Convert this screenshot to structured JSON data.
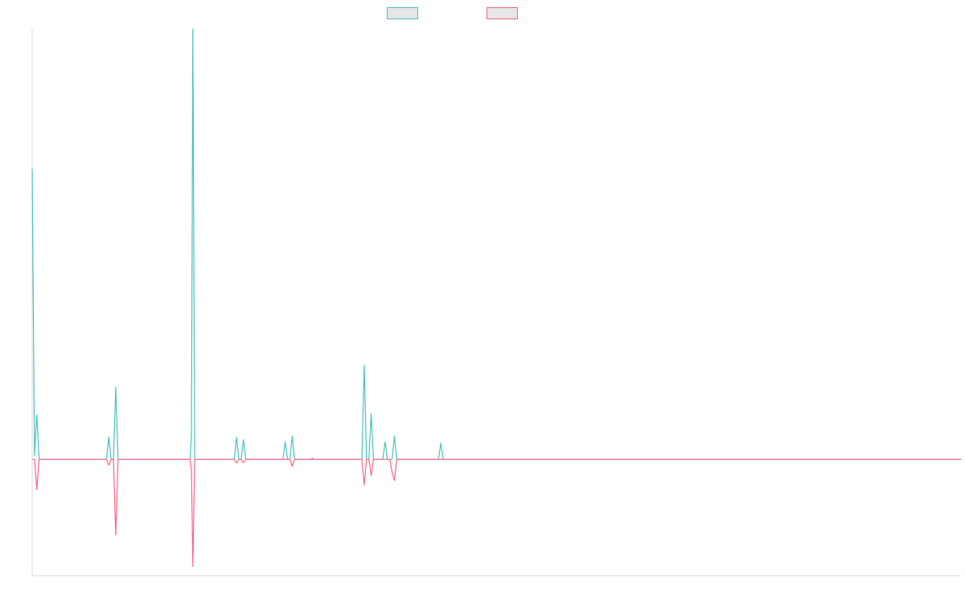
{
  "colors": {
    "series_1": "#4bc0c0",
    "series_2": "#ff6384",
    "axis": "#d9d9d9"
  },
  "legend": {
    "items": [
      {
        "label": ""
      },
      {
        "label": ""
      }
    ]
  },
  "chart_data": {
    "type": "line",
    "title": "",
    "xlabel": "",
    "ylabel": "",
    "grid": false,
    "legend_position": "top",
    "x_range": [
      0,
      200
    ],
    "ylim": [
      -100,
      370
    ],
    "series": [
      {
        "color": "#4bc0c0",
        "points": [
          [
            0,
            250
          ],
          [
            0.5,
            3
          ],
          [
            1,
            38
          ],
          [
            1.5,
            0
          ],
          [
            16,
            0
          ],
          [
            16.5,
            19
          ],
          [
            17,
            0
          ],
          [
            17.5,
            0
          ],
          [
            18,
            62
          ],
          [
            18.5,
            0
          ],
          [
            34,
            0
          ],
          [
            34.3,
            20
          ],
          [
            34.6,
            370
          ],
          [
            35,
            0
          ],
          [
            43.5,
            0
          ],
          [
            44,
            19
          ],
          [
            44.5,
            0
          ],
          [
            45,
            0
          ],
          [
            45.5,
            17
          ],
          [
            46,
            0
          ],
          [
            54,
            0
          ],
          [
            54.5,
            15
          ],
          [
            55,
            0
          ],
          [
            55.5,
            0
          ],
          [
            56,
            20
          ],
          [
            56.5,
            0
          ],
          [
            60,
            0
          ],
          [
            60.3,
            1
          ],
          [
            60.6,
            0
          ],
          [
            71,
            0
          ],
          [
            71.5,
            81
          ],
          [
            72,
            0
          ],
          [
            72.5,
            0
          ],
          [
            73,
            39
          ],
          [
            73.5,
            0
          ],
          [
            75.5,
            0
          ],
          [
            76,
            15
          ],
          [
            76.5,
            0
          ],
          [
            77,
            0
          ],
          [
            77.5,
            0
          ],
          [
            78,
            20
          ],
          [
            78.5,
            0
          ],
          [
            87.5,
            0
          ],
          [
            88,
            14
          ],
          [
            88.5,
            0
          ],
          [
            200,
            0
          ]
        ]
      },
      {
        "color": "#ff6384",
        "points": [
          [
            0,
            0
          ],
          [
            0.5,
            0
          ],
          [
            1,
            -26
          ],
          [
            1.5,
            0
          ],
          [
            16,
            0
          ],
          [
            16.5,
            -5
          ],
          [
            17,
            0
          ],
          [
            17.5,
            0
          ],
          [
            18,
            -65
          ],
          [
            18.5,
            0
          ],
          [
            34,
            0
          ],
          [
            34.3,
            -10
          ],
          [
            34.6,
            -92
          ],
          [
            35,
            0
          ],
          [
            43.5,
            0
          ],
          [
            44,
            -3
          ],
          [
            44.5,
            0
          ],
          [
            45,
            0
          ],
          [
            45.5,
            -3
          ],
          [
            46,
            0
          ],
          [
            54,
            0
          ],
          [
            54.5,
            0
          ],
          [
            55,
            0
          ],
          [
            55.5,
            0
          ],
          [
            56,
            -6
          ],
          [
            56.5,
            0
          ],
          [
            71,
            0
          ],
          [
            71.5,
            -22
          ],
          [
            72,
            0
          ],
          [
            72.5,
            0
          ],
          [
            73,
            -14
          ],
          [
            73.5,
            0
          ],
          [
            75.5,
            0
          ],
          [
            76,
            0
          ],
          [
            76.5,
            0
          ],
          [
            77,
            0
          ],
          [
            77.5,
            -11
          ],
          [
            78,
            -18
          ],
          [
            78.5,
            0
          ],
          [
            200,
            0
          ]
        ]
      }
    ]
  }
}
